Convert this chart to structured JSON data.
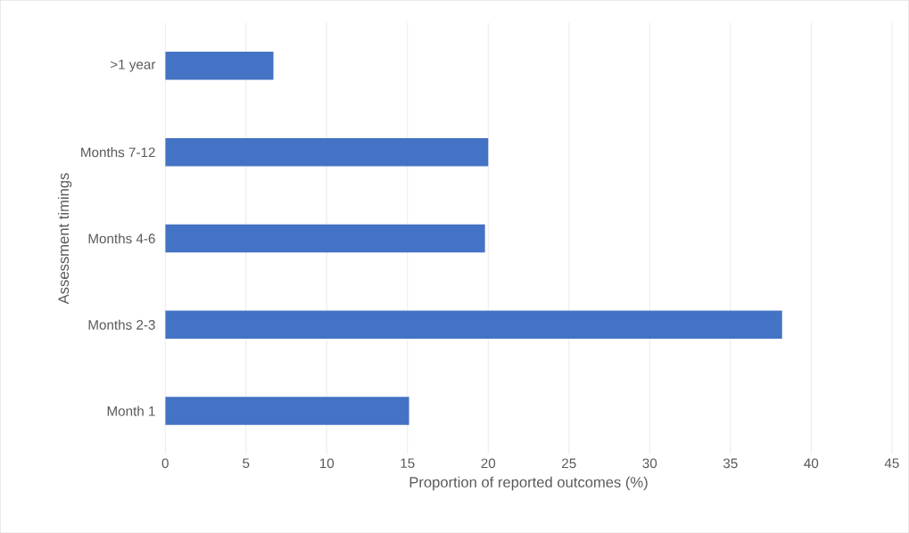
{
  "chart_data": {
    "type": "bar",
    "orientation": "horizontal",
    "xlabel": "Proportion of reported outcomes (%)",
    "ylabel": "Assessment timings",
    "categories": [
      ">1 year",
      "Months 7-12",
      "Months 4-6",
      "Months 2-3",
      "Month 1"
    ],
    "values": [
      6.7,
      20.0,
      19.8,
      38.2,
      15.1
    ],
    "color": "#4472c4",
    "xlim": [
      0,
      45
    ],
    "xticks": [
      0,
      5,
      10,
      15,
      20,
      25,
      30,
      35,
      40,
      45
    ],
    "grid": "x"
  }
}
